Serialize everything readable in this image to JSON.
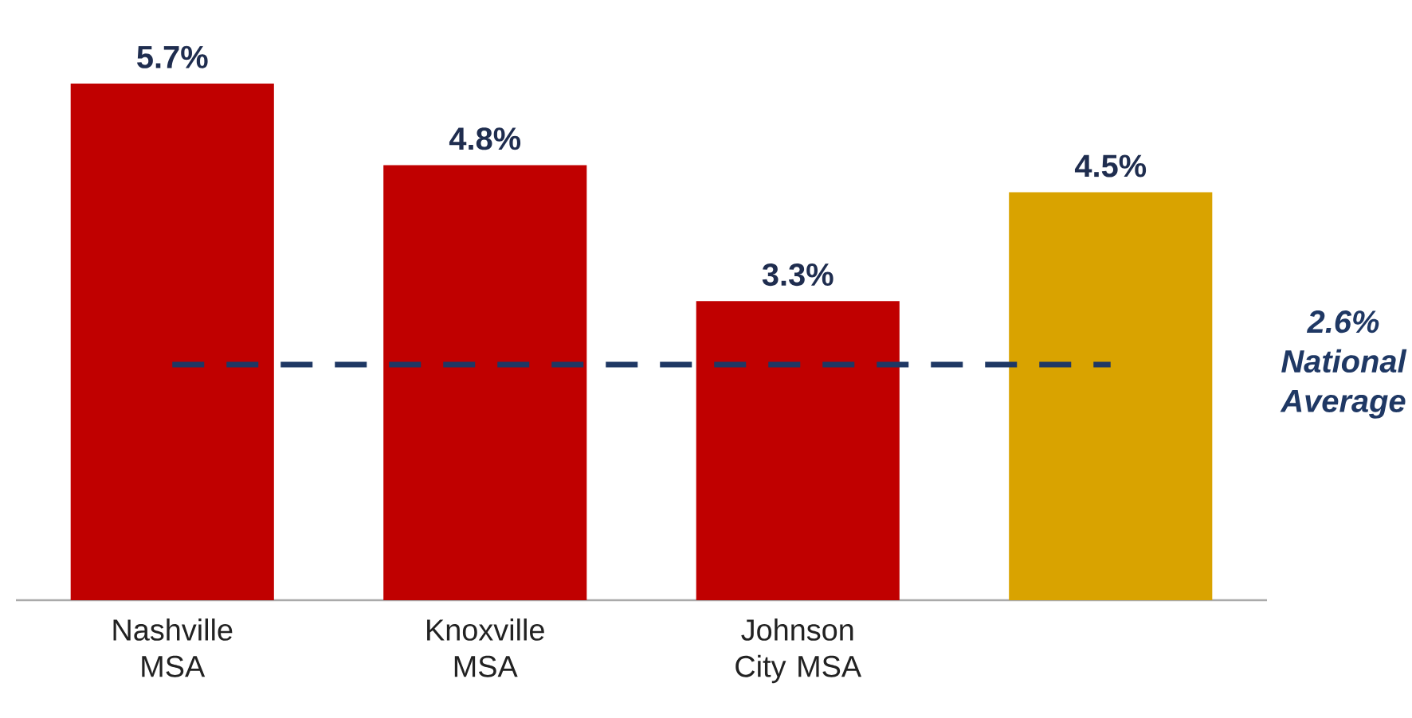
{
  "chart_data": {
    "type": "bar",
    "categories": [
      "Nashville MSA",
      "Knoxville MSA",
      "Johnson City MSA",
      null
    ],
    "values": [
      5.7,
      4.8,
      3.3,
      4.5
    ],
    "colors": [
      "#c00000",
      "#c00000",
      "#c00000",
      "#d9a300"
    ],
    "value_labels": [
      "5.7%",
      "4.8%",
      "3.3%",
      "4.5%"
    ],
    "ref_lines": [
      {
        "axis": "y",
        "value": 2.6,
        "label": "2.6% National Average",
        "color": "#1f3864",
        "line_style": "dashed"
      }
    ]
  }
}
